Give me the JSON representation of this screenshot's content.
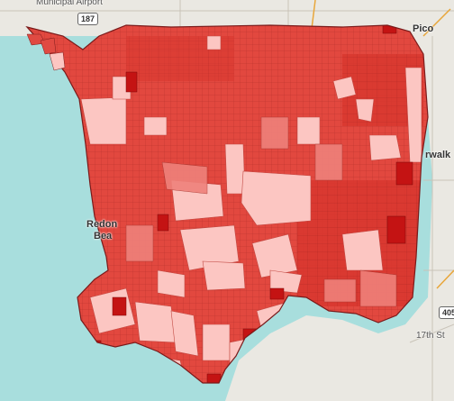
{
  "labels": {
    "airport": "Municipal Airport",
    "city_redondo_top": "Redon",
    "city_redondo_bottom": "Bea",
    "city_norwalk": "rwalk",
    "city_pico": "Pico",
    "street_bottom": "17th St",
    "route_shield": "187",
    "route_shield_east": "405"
  },
  "colors": {
    "ocean": "#a8dedd",
    "land": "#ece9e1",
    "tract_dark": "#c41313",
    "tract_mid": "#e0453d",
    "tract_light": "#ee7f77",
    "tract_pale": "#fcc6c2",
    "tract_border": "#8a1a1a"
  },
  "map": {
    "legend": []
  }
}
